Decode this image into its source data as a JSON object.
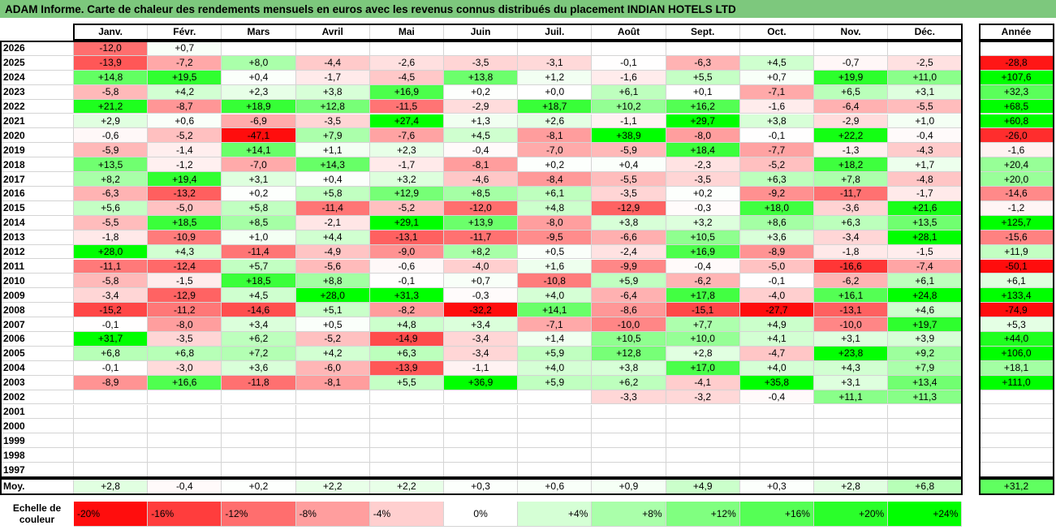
{
  "title": "ADAM Informe. Carte de chaleur des rendements mensuels en euros avec les revenus connus distribués du placement INDIAN HOTELS LTD",
  "headers": {
    "months": [
      "Janv.",
      "Févr.",
      "Mars",
      "Avril",
      "Mai",
      "Juin",
      "Juil.",
      "Août",
      "Sept.",
      "Oct.",
      "Nov.",
      "Déc."
    ],
    "annual": "Année"
  },
  "rows": [
    {
      "year": "2026",
      "months": [
        "-12,0",
        "+0,7",
        null,
        null,
        null,
        null,
        null,
        null,
        null,
        null,
        null,
        null
      ],
      "annual": null
    },
    {
      "year": "2025",
      "months": [
        "-13,9",
        "-7,2",
        "+8,0",
        "-4,4",
        "-2,6",
        "-3,5",
        "-3,1",
        "-0,1",
        "-6,3",
        "+4,5",
        "-0,7",
        "-2,5"
      ],
      "annual": "-28,8"
    },
    {
      "year": "2024",
      "months": [
        "+14,8",
        "+19,5",
        "+0,4",
        "-1,7",
        "-4,5",
        "+13,8",
        "+1,2",
        "-1,6",
        "+5,5",
        "+0,7",
        "+19,9",
        "+11,0"
      ],
      "annual": "+107,6"
    },
    {
      "year": "2023",
      "months": [
        "-5,8",
        "+4,2",
        "+2,3",
        "+3,8",
        "+16,9",
        "+0,2",
        "+0,0",
        "+6,1",
        "+0,1",
        "-7,1",
        "+6,5",
        "+3,1"
      ],
      "annual": "+32,3"
    },
    {
      "year": "2022",
      "months": [
        "+21,2",
        "-8,7",
        "+18,9",
        "+12,8",
        "-11,5",
        "-2,9",
        "+18,7",
        "+10,2",
        "+16,2",
        "-1,6",
        "-6,4",
        "-5,5"
      ],
      "annual": "+68,5"
    },
    {
      "year": "2021",
      "months": [
        "+2,9",
        "+0,6",
        "-6,9",
        "-3,5",
        "+27,4",
        "+1,3",
        "+2,6",
        "-1,1",
        "+29,7",
        "+3,8",
        "-2,9",
        "+1,0"
      ],
      "annual": "+60,8"
    },
    {
      "year": "2020",
      "months": [
        "-0,6",
        "-5,2",
        "-47,1",
        "+7,9",
        "-7,6",
        "+4,5",
        "-8,1",
        "+38,9",
        "-8,0",
        "-0,1",
        "+22,2",
        "-0,4"
      ],
      "annual": "-26,0"
    },
    {
      "year": "2019",
      "months": [
        "-5,9",
        "-1,4",
        "+14,1",
        "+1,1",
        "+2,3",
        "-0,4",
        "-7,0",
        "-5,9",
        "+18,4",
        "-7,7",
        "-1,3",
        "-4,3"
      ],
      "annual": "-1,6"
    },
    {
      "year": "2018",
      "months": [
        "+13,5",
        "-1,2",
        "-7,0",
        "+14,3",
        "-1,7",
        "-8,1",
        "+0,2",
        "+0,4",
        "-2,3",
        "-5,2",
        "+18,2",
        "+1,7"
      ],
      "annual": "+20,4"
    },
    {
      "year": "2017",
      "months": [
        "+8,2",
        "+19,4",
        "+3,1",
        "+0,4",
        "+3,2",
        "-4,6",
        "-8,4",
        "-5,5",
        "-3,5",
        "+6,3",
        "+7,8",
        "-4,8"
      ],
      "annual": "+20,0"
    },
    {
      "year": "2016",
      "months": [
        "-6,3",
        "-13,2",
        "+0,2",
        "+5,8",
        "+12,9",
        "+8,5",
        "+6,1",
        "-3,5",
        "+0,2",
        "-9,2",
        "-11,7",
        "-1,7"
      ],
      "annual": "-14,6"
    },
    {
      "year": "2015",
      "months": [
        "+5,6",
        "-5,0",
        "+5,8",
        "-11,4",
        "-5,2",
        "-12,0",
        "+4,8",
        "-12,9",
        "-0,3",
        "+18,0",
        "-3,6",
        "+21,6"
      ],
      "annual": "-1,2"
    },
    {
      "year": "2014",
      "months": [
        "-5,5",
        "+18,5",
        "+8,5",
        "-2,1",
        "+29,1",
        "+13,9",
        "-8,0",
        "+3,8",
        "+3,2",
        "+8,6",
        "+6,3",
        "+13,5"
      ],
      "annual": "+125,7"
    },
    {
      "year": "2013",
      "months": [
        "-1,8",
        "-10,9",
        "+1,0",
        "+4,4",
        "-13,1",
        "-11,7",
        "-9,5",
        "-6,6",
        "+10,5",
        "+3,6",
        "-3,4",
        "+28,1"
      ],
      "annual": "-15,6"
    },
    {
      "year": "2012",
      "months": [
        "+28,0",
        "+4,3",
        "-11,4",
        "-4,9",
        "-9,0",
        "+8,2",
        "+0,5",
        "-2,4",
        "+16,9",
        "-8,9",
        "-1,8",
        "-1,5"
      ],
      "annual": "+11,9"
    },
    {
      "year": "2011",
      "months": [
        "-11,1",
        "-12,4",
        "+5,7",
        "-5,6",
        "-0,6",
        "-4,0",
        "+1,6",
        "-9,9",
        "-0,4",
        "-5,0",
        "-16,6",
        "-7,4"
      ],
      "annual": "-50,1"
    },
    {
      "year": "2010",
      "months": [
        "-5,8",
        "-1,5",
        "+18,5",
        "+8,8",
        "-0,1",
        "+0,7",
        "-10,8",
        "+5,9",
        "-6,2",
        "-0,1",
        "-6,2",
        "+6,1"
      ],
      "annual": "+6,1"
    },
    {
      "year": "2009",
      "months": [
        "-3,4",
        "-12,9",
        "+4,5",
        "+28,0",
        "+31,3",
        "-0,3",
        "+4,0",
        "-6,4",
        "+17,8",
        "-4,0",
        "+16,1",
        "+24,8"
      ],
      "annual": "+133,4"
    },
    {
      "year": "2008",
      "months": [
        "-15,2",
        "-11,2",
        "-14,6",
        "+5,1",
        "-8,2",
        "-32,2",
        "+14,1",
        "-8,6",
        "-15,1",
        "-27,7",
        "-13,1",
        "+4,6"
      ],
      "annual": "-74,9"
    },
    {
      "year": "2007",
      "months": [
        "-0,1",
        "-8,0",
        "+3,4",
        "+0,5",
        "+4,8",
        "+3,4",
        "-7,1",
        "-10,0",
        "+7,7",
        "+4,9",
        "-10,0",
        "+19,7"
      ],
      "annual": "+5,3"
    },
    {
      "year": "2006",
      "months": [
        "+31,7",
        "-3,5",
        "+6,2",
        "-5,2",
        "-14,9",
        "-3,4",
        "+1,4",
        "+10,5",
        "+10,0",
        "+4,1",
        "+3,1",
        "+3,9"
      ],
      "annual": "+44,0"
    },
    {
      "year": "2005",
      "months": [
        "+6,8",
        "+6,8",
        "+7,2",
        "+4,2",
        "+6,3",
        "-3,4",
        "+5,9",
        "+12,8",
        "+2,8",
        "-4,7",
        "+23,8",
        "+9,2"
      ],
      "annual": "+106,0"
    },
    {
      "year": "2004",
      "months": [
        "-0,1",
        "-3,0",
        "+3,6",
        "-6,0",
        "-13,9",
        "-1,1",
        "+4,0",
        "+3,8",
        "+17,0",
        "+4,0",
        "+4,3",
        "+7,9"
      ],
      "annual": "+18,1"
    },
    {
      "year": "2003",
      "months": [
        "-8,9",
        "+16,6",
        "-11,8",
        "-8,1",
        "+5,5",
        "+36,9",
        "+5,9",
        "+6,2",
        "-4,1",
        "+35,8",
        "+3,1",
        "+13,4"
      ],
      "annual": "+111,0"
    },
    {
      "year": "2002",
      "months": [
        null,
        null,
        null,
        null,
        null,
        null,
        null,
        "-3,3",
        "-3,2",
        "-0,4",
        "+11,1",
        "+11,3"
      ],
      "annual": null
    },
    {
      "year": "2001",
      "months": [
        null,
        null,
        null,
        null,
        null,
        null,
        null,
        null,
        null,
        null,
        null,
        null
      ],
      "annual": null
    },
    {
      "year": "2000",
      "months": [
        null,
        null,
        null,
        null,
        null,
        null,
        null,
        null,
        null,
        null,
        null,
        null
      ],
      "annual": null
    },
    {
      "year": "1999",
      "months": [
        null,
        null,
        null,
        null,
        null,
        null,
        null,
        null,
        null,
        null,
        null,
        null
      ],
      "annual": null
    },
    {
      "year": "1998",
      "months": [
        null,
        null,
        null,
        null,
        null,
        null,
        null,
        null,
        null,
        null,
        null,
        null
      ],
      "annual": null
    },
    {
      "year": "1997",
      "months": [
        null,
        null,
        null,
        null,
        null,
        null,
        null,
        null,
        null,
        null,
        null,
        null
      ],
      "annual": null
    }
  ],
  "average": {
    "label": "Moy.",
    "months": [
      "+2,8",
      "-0,4",
      "+0,2",
      "+2,2",
      "+2,2",
      "+0,3",
      "+0,6",
      "+0,9",
      "+4,9",
      "+0,3",
      "+2,8",
      "+6,8"
    ],
    "annual": "+31,2"
  },
  "scale": {
    "label": "Echelle de couleur",
    "steps": [
      "-20%",
      "-16%",
      "-12%",
      "-8%",
      "-4%",
      "0%",
      "+4%",
      "+8%",
      "+12%",
      "+16%",
      "+20%",
      "+24%"
    ]
  }
}
